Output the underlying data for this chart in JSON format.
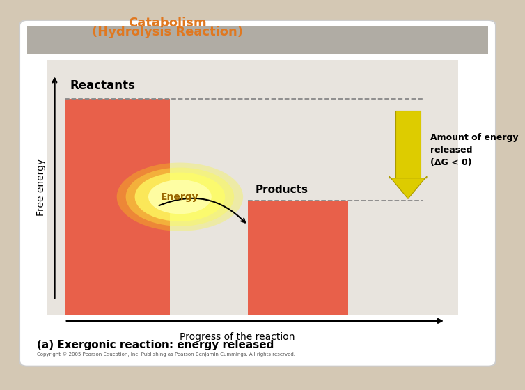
{
  "title_line1": "Catabolism",
  "title_line2": "(Hydrolysis Reaction)",
  "title_color": "#e07820",
  "bg_outer": "#d4c8b4",
  "bg_inner": "#d0c8bc",
  "bar_color": "#e8604a",
  "reactant_label": "Reactants",
  "product_label": "Products",
  "ylabel": "Free energy",
  "xlabel": "Progress of the reaction",
  "annotation_label": "Amount of energy\nreleased\n(ΔG < 0)",
  "energy_label": "Energy",
  "footer1": "(a) Exergonic reaction: energy released",
  "footer2": "Copyright © 2005 Pearson Education, Inc. Publishing as Pearson Benjamin Cummings. All rights reserved.",
  "dashed_color": "#888888",
  "arrow_color": "#ddcc00",
  "header_color": "#b0aca4",
  "card_color": "#e8e4de"
}
